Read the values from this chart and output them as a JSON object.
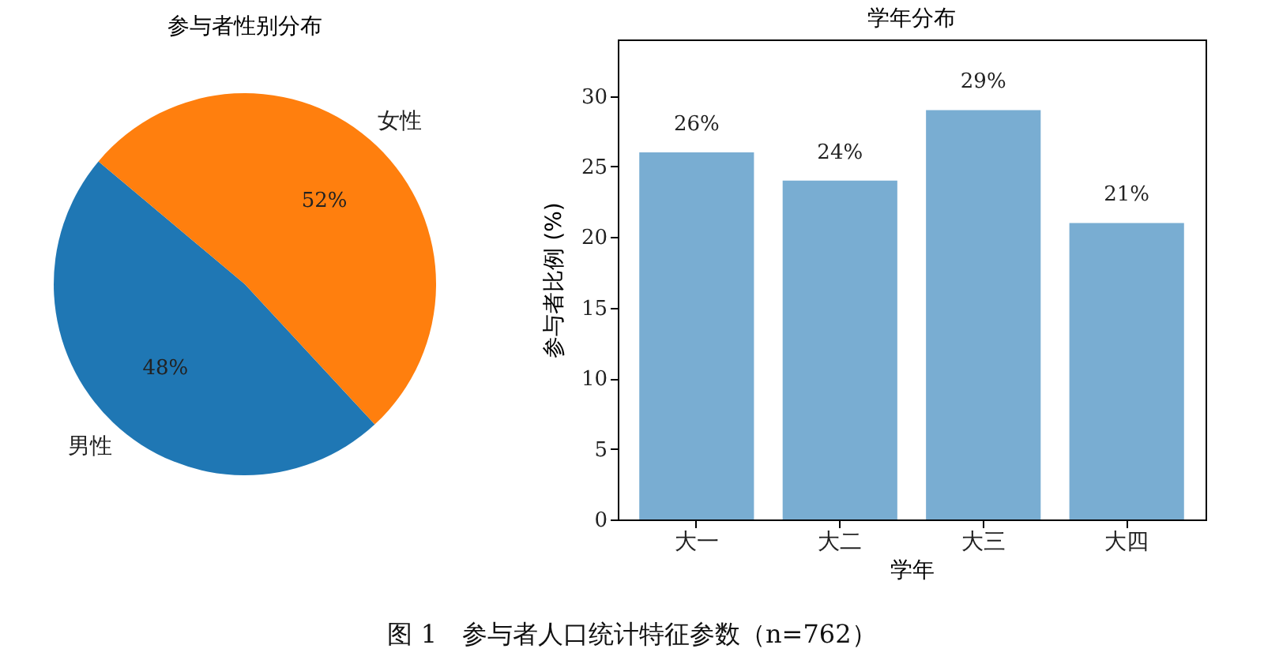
{
  "chart_data": [
    {
      "type": "pie",
      "title": "参与者性别分布",
      "categories": [
        "男性",
        "女性"
      ],
      "values": [
        48,
        52
      ],
      "colors": [
        "#1f77b4",
        "#ff7f0e"
      ],
      "value_labels": [
        "48%",
        "52%"
      ]
    },
    {
      "type": "bar",
      "title": "学年分布",
      "categories": [
        "大一",
        "大二",
        "大三",
        "大四"
      ],
      "values": [
        26,
        24,
        29,
        21
      ],
      "color": "#79add2",
      "value_labels": [
        "26%",
        "24%",
        "29%",
        "21%"
      ],
      "xlabel": "学年",
      "ylabel": "参与者比例 (%)",
      "ylim": [
        0,
        34
      ],
      "yticks": [
        0,
        5,
        10,
        15,
        20,
        25,
        30
      ],
      "annotations": [
        "图 1　参与者人口统计特征参数（n=762）"
      ]
    }
  ]
}
